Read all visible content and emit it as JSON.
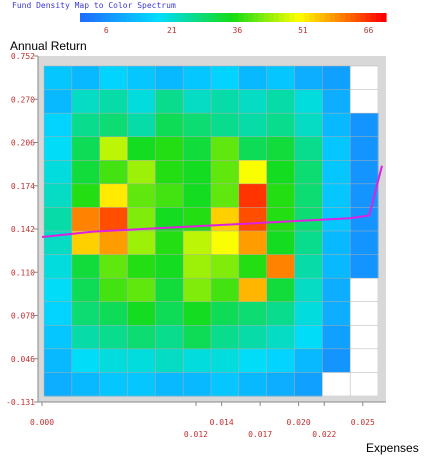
{
  "chart_data": {
    "type": "heatmap",
    "legend": {
      "title": "Fund Density Map to Color Spectrum",
      "ticks": [
        "6",
        "21",
        "36",
        "51",
        "66"
      ],
      "min": 0,
      "max": 70
    },
    "xlabel": "Expenses",
    "ylabel": "Annual Return",
    "x_ticks_upper": [
      "0.000",
      "0.014",
      "0.020",
      "0.025"
    ],
    "x_ticks_lower": [
      "0.012",
      "0.017",
      "0.022"
    ],
    "y_ticks": [
      "0.752",
      "0.270",
      "0.206",
      "0.174",
      "0.142",
      "0.110",
      "0.078",
      "0.046",
      "-0.131"
    ],
    "grid": true,
    "density": [
      [
        14,
        12,
        16,
        14,
        12,
        14,
        16,
        12,
        14,
        10,
        8,
        4
      ],
      [
        12,
        22,
        24,
        20,
        26,
        22,
        24,
        22,
        24,
        20,
        10,
        4
      ],
      [
        16,
        26,
        28,
        24,
        30,
        28,
        26,
        24,
        26,
        22,
        12,
        6
      ],
      [
        18,
        30,
        46,
        34,
        36,
        32,
        40,
        30,
        32,
        26,
        14,
        6
      ],
      [
        20,
        32,
        38,
        44,
        36,
        34,
        40,
        50,
        34,
        28,
        14,
        6
      ],
      [
        22,
        36,
        52,
        40,
        38,
        34,
        40,
        66,
        36,
        28,
        14,
        6
      ],
      [
        24,
        60,
        64,
        42,
        34,
        36,
        54,
        64,
        36,
        28,
        14,
        6
      ],
      [
        22,
        54,
        58,
        44,
        36,
        46,
        50,
        58,
        34,
        26,
        12,
        6
      ],
      [
        20,
        32,
        40,
        36,
        34,
        44,
        42,
        36,
        60,
        24,
        12,
        6
      ],
      [
        18,
        30,
        38,
        40,
        32,
        42,
        38,
        56,
        32,
        22,
        10,
        4
      ],
      [
        16,
        28,
        30,
        34,
        30,
        34,
        30,
        28,
        26,
        20,
        10,
        4
      ],
      [
        14,
        24,
        26,
        28,
        26,
        30,
        26,
        24,
        22,
        18,
        8,
        4
      ],
      [
        12,
        18,
        20,
        20,
        22,
        20,
        20,
        18,
        16,
        12,
        6,
        2
      ],
      [
        10,
        12,
        14,
        14,
        12,
        12,
        14,
        12,
        10,
        8,
        4,
        2
      ]
    ],
    "overlay_line": {
      "color": "#e020e0",
      "description_points": [
        [
          0.0,
          0.142
        ],
        [
          0.004,
          0.146
        ],
        [
          0.008,
          0.148
        ],
        [
          0.012,
          0.15
        ],
        [
          0.016,
          0.152
        ],
        [
          0.02,
          0.154
        ],
        [
          0.024,
          0.156
        ],
        [
          0.0255,
          0.158
        ],
        [
          0.0265,
          0.195
        ]
      ]
    }
  }
}
